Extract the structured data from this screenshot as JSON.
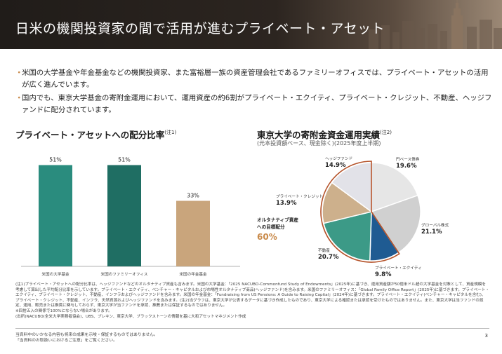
{
  "header": {
    "title": "日米の機関投資家の間で活用が進むプライベート・アセット"
  },
  "bullets": [
    "米国の大学基金や年金基金などの機関投資家、また富裕層一族の資産管理会社であるファミリーオフィスでは、プライベート・アセットの活用が広く進んでいます。",
    "国内でも、東京大学基金の寄附金運用において、運用資産の約6割がプライベート・エクイティ、プライベート・クレジット、不動産、ヘッジファンドに配分されています。"
  ],
  "colors": {
    "bar_teal_1": "#2a8c7e",
    "bar_teal_2": "#1f6e63",
    "bar_tan": "#c9a57c",
    "accent": "#c98a4a",
    "highlight_outline": "#b5532a"
  },
  "chart_data": [
    {
      "type": "bar",
      "title": "プライベート・アセットへの配分比率",
      "title_note": "(注1)",
      "categories": [
        "米国の大学基金",
        "米国のファミリーオフィス",
        "米国の年金基金"
      ],
      "values": [
        51,
        51,
        33
      ],
      "data_labels": [
        "51%",
        "51%",
        "33%"
      ],
      "ylim": [
        0,
        60
      ]
    },
    {
      "type": "pie",
      "title": "東京大学の寄附金資金運用実績",
      "title_note": "(注2)",
      "subtitle": "(元本投資額ベース、現金除く)(2025年度上半期)",
      "slices": [
        {
          "label": "円ベース債券",
          "value": 19.6,
          "value_label": "19.6%",
          "color": "#e6e6e6"
        },
        {
          "label": "グローバル株式",
          "value": 21.1,
          "value_label": "21.1%",
          "color": "#d0d0d0"
        },
        {
          "label": "プライベート・エクイティ",
          "value": 9.8,
          "value_label": "9.8%",
          "color": "#1f5b92"
        },
        {
          "label": "不動産",
          "value": 20.7,
          "value_label": "20.7%",
          "color": "#3c9a87"
        },
        {
          "label": "プライベート・クレジット",
          "value": 13.9,
          "value_label": "13.9%",
          "color": "#cdb08c"
        },
        {
          "label": "ヘッジファンド",
          "value": 14.9,
          "value_label": "14.9%",
          "color": "#e2e2e8"
        }
      ],
      "annotation": {
        "label_line1": "オルタナティブ資産",
        "label_line2": "への目標配分",
        "value_label": "60%"
      }
    }
  ],
  "notes": [
    "(注1)プライベート・アセットへの配分比率は、ヘッジファンドなどのオルタナティブ資産も含みます。米国の大学基金：「2025 NACUBO-Commonfund Study of Endowments」(2025年)に基づき、運用資産額が50億米ドル超の大学基金を対象として、資産規模を考慮して算出した平均配分比率を示しています。プライベート・エクイティ、ベンチャー・キャピタルおよび市場性オルタナティブ商品(ヘッジファンド)を含みます。米国のファミリーオフィス：「Global Family Office Report」(2025年)に基づきます。プライベート・エクイティ、プライベート・クレジット、不動産、インフラおよびヘッジファンドを含みます。米国の年金基金：「Fundraising from US Pensions: A Guide to Raising Capital」(2024年)に基づきます。プライベート・エクイティ(ベンチャー・キャピタルを含む)、プライベート・クレジット、不動産、インフラ、天然資源およびヘッジファンドを含みます。(注2)当グラフは、東京大学が公表するデータに基づき作成したものであり、東京大学による確認または承認を受けたものではありません。また、東京大学は当ファンドの設定、運用、販売または推奨に関与しておらず、東京大学が当ファンドを承認、推薦または保証するものではありません。",
    "※四捨五入の関係で100%にならない場合があります。",
    "(出所)NACUBO(全米大学実務者協会)、UBS、プレキン、東京大学、ブラックストーンの情報を基に大和アセットマネジメント作成"
  ],
  "footer": {
    "disclaimer_1": "当資料中のいかなる内容も将来の成果を示唆・保証するものではありません。",
    "disclaimer_2": "「当資料のお取扱いにおけるご注意」をご覧ください。",
    "page": "3"
  }
}
